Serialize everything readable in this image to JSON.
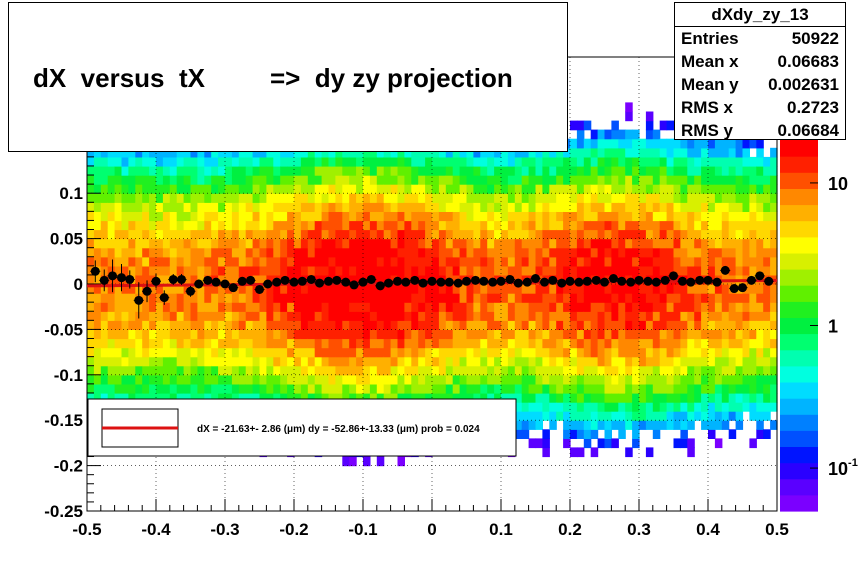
{
  "title": "dX  versus  tX         =>  dy zy projection",
  "stats": {
    "name": "dXdy_zy_13",
    "rows": [
      {
        "label": "Entries",
        "value": "50922"
      },
      {
        "label": "Mean x",
        "value": "0.06683"
      },
      {
        "label": "Mean y",
        "value": "0.002631"
      },
      {
        "label": "RMS x",
        "value": "0.2723"
      },
      {
        "label": "RMS y",
        "value": "0.06684"
      }
    ]
  },
  "fit_legend": "dX = -21.63+- 2.86 (μm) dy = -52.86+-13.33 (μm) prob = 0.024",
  "colors": {
    "fit_line": "#dd1111",
    "points": "#000000"
  },
  "chart_data": {
    "type": "heatmap",
    "xlim": [
      -0.5,
      0.5
    ],
    "ylim": [
      -0.25,
      0.25
    ],
    "x_ticks": [
      "-0.5",
      "-0.4",
      "-0.3",
      "-0.2",
      "-0.1",
      "0",
      "0.1",
      "0.2",
      "0.3",
      "0.4",
      "0.5"
    ],
    "x_tick_values": [
      -0.5,
      -0.4,
      -0.3,
      -0.2,
      -0.1,
      0,
      0.1,
      0.2,
      0.3,
      0.4,
      0.5
    ],
    "y_ticks": [
      "-0.25",
      "-0.2",
      "-0.15",
      "-0.1",
      "-0.05",
      "0",
      "0.05",
      "0.1"
    ],
    "y_tick_values": [
      -0.25,
      -0.2,
      -0.15,
      -0.1,
      -0.05,
      0,
      0.05,
      0.1
    ],
    "z_scale": "log",
    "z_ticks": [
      "10",
      "1",
      "10^-1"
    ],
    "z_tick_values": [
      10,
      1,
      0.1
    ],
    "z_range": [
      0.05,
      20
    ],
    "grid": true,
    "profile_points": {
      "x": [
        -0.488,
        -0.475,
        -0.463,
        -0.45,
        -0.438,
        -0.425,
        -0.413,
        -0.4,
        -0.388,
        -0.375,
        -0.363,
        -0.35,
        -0.338,
        -0.325,
        -0.313,
        -0.3,
        -0.288,
        -0.275,
        -0.263,
        -0.25,
        -0.238,
        -0.225,
        -0.213,
        -0.2,
        -0.188,
        -0.175,
        -0.163,
        -0.15,
        -0.138,
        -0.125,
        -0.113,
        -0.1,
        -0.088,
        -0.075,
        -0.063,
        -0.05,
        -0.038,
        -0.025,
        -0.013,
        0.0,
        0.013,
        0.025,
        0.038,
        0.05,
        0.063,
        0.075,
        0.088,
        0.1,
        0.113,
        0.125,
        0.138,
        0.15,
        0.163,
        0.175,
        0.188,
        0.2,
        0.213,
        0.225,
        0.238,
        0.25,
        0.263,
        0.275,
        0.288,
        0.3,
        0.313,
        0.325,
        0.338,
        0.35,
        0.363,
        0.375,
        0.388,
        0.4,
        0.413,
        0.425,
        0.438,
        0.45,
        0.463,
        0.475,
        0.488
      ],
      "y": [
        0.014,
        0.004,
        0.009,
        0.007,
        0.005,
        -0.018,
        -0.008,
        0.003,
        -0.015,
        0.005,
        0.005,
        -0.008,
        0.0,
        0.004,
        0.002,
        0.0,
        -0.004,
        0.003,
        0.004,
        -0.006,
        0.0,
        0.002,
        0.004,
        0.002,
        0.003,
        0.005,
        0.001,
        0.003,
        0.004,
        0.002,
        -0.001,
        0.002,
        0.005,
        -0.002,
        0.001,
        0.003,
        0.002,
        0.004,
        0.001,
        0.003,
        0.002,
        0.002,
        0.001,
        0.003,
        0.004,
        0.003,
        0.002,
        0.003,
        0.005,
        0.001,
        0.002,
        0.006,
        0.002,
        0.004,
        0.001,
        0.003,
        0.002,
        0.003,
        0.004,
        0.002,
        0.006,
        0.003,
        0.002,
        0.004,
        0.003,
        0.002,
        0.004,
        0.009,
        0.003,
        0.002,
        0.004,
        0.004,
        0.002,
        0.015,
        -0.005,
        -0.004,
        0.004,
        0.009,
        0.003
      ],
      "err": [
        0.012,
        0.012,
        0.018,
        0.015,
        0.01,
        0.02,
        0.012,
        0.008,
        0.008,
        0.006,
        0.006,
        0.006,
        0.005,
        0.004,
        0.004,
        0.004,
        0.004,
        0.003,
        0.003,
        0.003,
        0.003,
        0.003,
        0.003,
        0.003,
        0.003,
        0.003,
        0.003,
        0.003,
        0.003,
        0.003,
        0.003,
        0.003,
        0.003,
        0.003,
        0.003,
        0.003,
        0.003,
        0.003,
        0.003,
        0.003,
        0.003,
        0.003,
        0.003,
        0.003,
        0.003,
        0.003,
        0.003,
        0.003,
        0.003,
        0.003,
        0.003,
        0.003,
        0.003,
        0.003,
        0.003,
        0.003,
        0.003,
        0.003,
        0.003,
        0.003,
        0.003,
        0.003,
        0.003,
        0.003,
        0.003,
        0.003,
        0.003,
        0.003,
        0.003,
        0.003,
        0.003,
        0.003,
        0.003,
        0.004,
        0.004,
        0.004,
        0.004,
        0.004,
        0.004
      ]
    },
    "fit_line": {
      "x": [
        -0.5,
        0.5
      ],
      "y": [
        -0.002,
        0.004
      ]
    }
  }
}
